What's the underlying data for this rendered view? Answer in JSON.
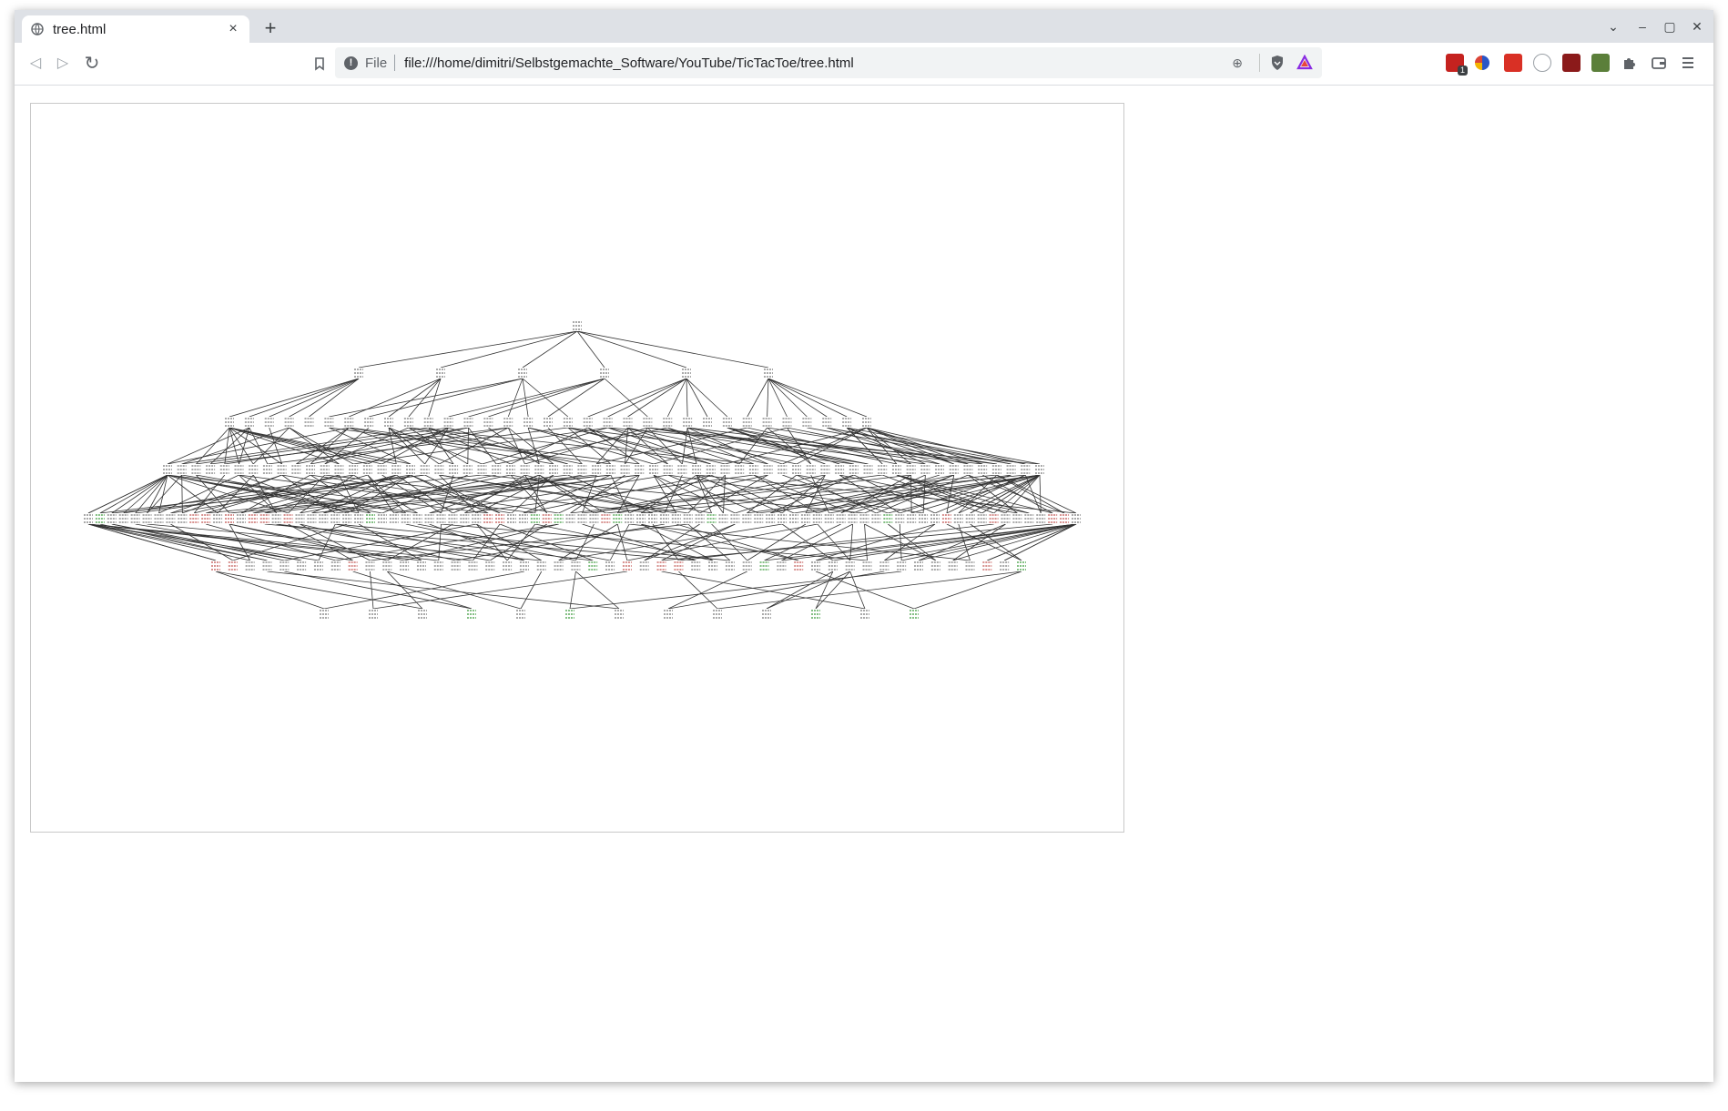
{
  "tab": {
    "title": "tree.html",
    "close_glyph": "×"
  },
  "new_tab_glyph": "+",
  "window_controls": {
    "list": "⌄",
    "minimize": "–",
    "maximize": "▢",
    "close": "✕"
  },
  "toolbar": {
    "back_glyph": "◁",
    "forward_glyph": "▷",
    "reload_glyph": "↻"
  },
  "address_bar": {
    "scheme_label": "File",
    "url": "file:///home/dimitri/Selbstgemachte_Software/YouTube/TicTacToe/tree.html",
    "zoom_glyph": "⊕"
  },
  "extensions": [
    {
      "name": "lock-badge-extension-icon",
      "color": "#c5221f",
      "badge": "1"
    },
    {
      "name": "color-circle-extension-icon",
      "color": "#f4b400"
    },
    {
      "name": "red-shield-extension-icon",
      "color": "#d93025"
    },
    {
      "name": "cm-extension-icon",
      "color": "#9aa0a6"
    },
    {
      "name": "dark-red-extension-icon",
      "color": "#8b1a1a"
    },
    {
      "name": "green-extension-icon",
      "color": "#5b7f3a"
    },
    {
      "name": "puzzle-icon",
      "color": "#5f6368"
    },
    {
      "name": "wallet-icon",
      "color": "#5f6368"
    },
    {
      "name": "menu-icon",
      "color": "#5f6368"
    }
  ],
  "graph": {
    "edge_color": "#333333",
    "node_text_color": "#777777",
    "win_colors": [
      "#c0504d",
      "#3b9b3b"
    ],
    "levels": [
      {
        "count": 1
      },
      {
        "count": 6
      },
      {
        "count": 33
      },
      {
        "count": 62
      },
      {
        "count": 85
      },
      {
        "count": 48
      },
      {
        "count": 13
      }
    ]
  }
}
